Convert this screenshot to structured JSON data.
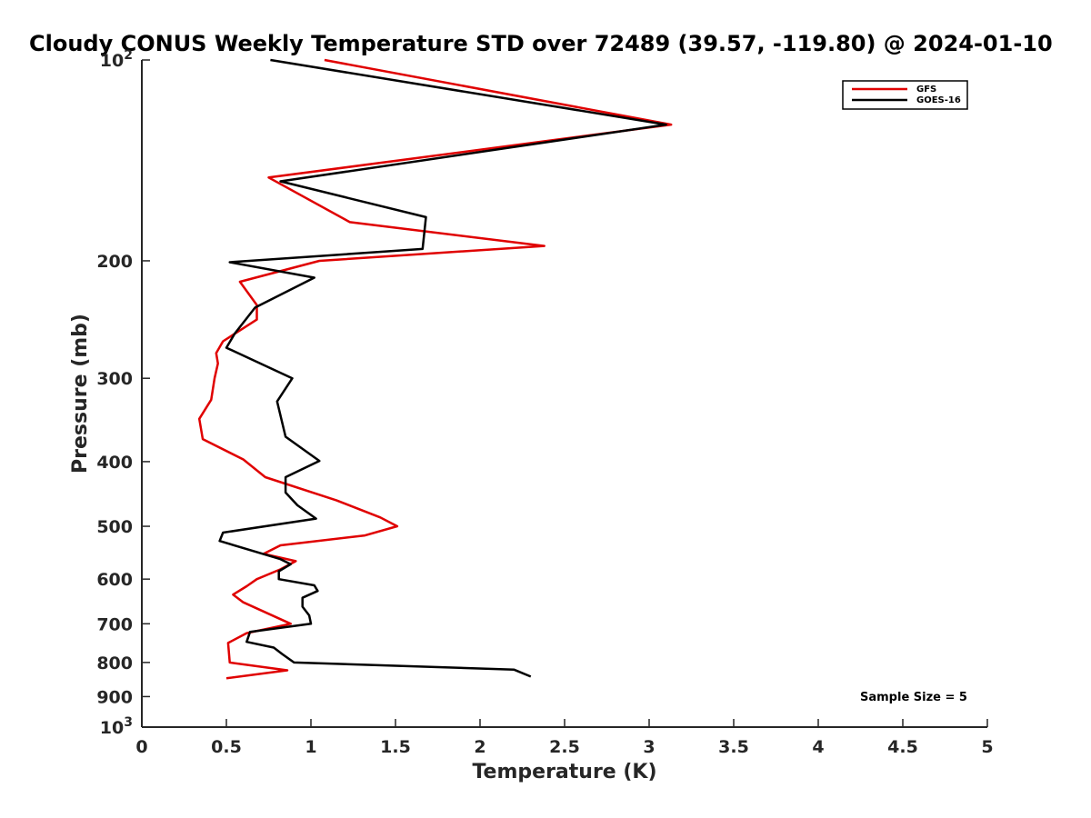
{
  "chart_data": {
    "type": "line",
    "title": "Cloudy CONUS Weekly Temperature STD over 72489 (39.57, -119.80) @ 2024-01-10",
    "xlabel": "Temperature (K)",
    "ylabel": "Pressure (mb)",
    "xlim": [
      0,
      5
    ],
    "ylim": [
      100,
      1000
    ],
    "yscale": "log",
    "y_reversed": true,
    "x_ticks": [
      "0",
      "0.5",
      "1",
      "1.5",
      "2",
      "2.5",
      "3",
      "3.5",
      "4",
      "4.5",
      "5"
    ],
    "y_ticks": [
      {
        "value": 100,
        "base": "10",
        "exp": "2"
      },
      {
        "value": 200,
        "label": "200"
      },
      {
        "value": 300,
        "label": "300"
      },
      {
        "value": 400,
        "label": "400"
      },
      {
        "value": 500,
        "label": "500"
      },
      {
        "value": 600,
        "label": "600"
      },
      {
        "value": 700,
        "label": "700"
      },
      {
        "value": 800,
        "label": "800"
      },
      {
        "value": 900,
        "label": "900"
      },
      {
        "value": 1000,
        "base": "10",
        "exp": "3"
      }
    ],
    "grid": false,
    "legend_position": "top-right",
    "annotation": "Sample Size = 5",
    "series": [
      {
        "name": "GFS",
        "color": "#e00000",
        "points": [
          [
            1.08,
            100
          ],
          [
            3.13,
            125
          ],
          [
            0.75,
            150
          ],
          [
            1.23,
            175
          ],
          [
            2.38,
            190
          ],
          [
            1.05,
            200
          ],
          [
            0.58,
            215
          ],
          [
            0.68,
            233
          ],
          [
            0.68,
            245
          ],
          [
            0.48,
            264
          ],
          [
            0.44,
            275
          ],
          [
            0.45,
            285
          ],
          [
            0.43,
            300
          ],
          [
            0.41,
            323
          ],
          [
            0.34,
            345
          ],
          [
            0.36,
            370
          ],
          [
            0.6,
            397
          ],
          [
            0.73,
            422
          ],
          [
            1.15,
            457
          ],
          [
            1.41,
            485
          ],
          [
            1.51,
            500
          ],
          [
            1.32,
            516
          ],
          [
            0.82,
            534
          ],
          [
            0.72,
            550
          ],
          [
            0.91,
            564
          ],
          [
            0.82,
            580
          ],
          [
            0.68,
            600
          ],
          [
            0.62,
            615
          ],
          [
            0.54,
            633
          ],
          [
            0.6,
            650
          ],
          [
            0.88,
            700
          ],
          [
            0.62,
            723
          ],
          [
            0.51,
            748
          ],
          [
            0.52,
            800
          ],
          [
            0.86,
            822
          ],
          [
            0.5,
            845
          ]
        ]
      },
      {
        "name": "GOES-16",
        "color": "#000000",
        "points": [
          [
            0.76,
            100
          ],
          [
            3.1,
            125
          ],
          [
            0.82,
            152
          ],
          [
            1.68,
            172
          ],
          [
            1.66,
            192
          ],
          [
            0.52,
            201
          ],
          [
            1.02,
            212
          ],
          [
            0.67,
            235
          ],
          [
            0.55,
            257
          ],
          [
            0.5,
            270
          ],
          [
            0.89,
            300
          ],
          [
            0.8,
            325
          ],
          [
            0.85,
            367
          ],
          [
            1.05,
            399
          ],
          [
            0.85,
            422
          ],
          [
            0.85,
            445
          ],
          [
            0.92,
            465
          ],
          [
            1.03,
            487
          ],
          [
            0.48,
            511
          ],
          [
            0.46,
            526
          ],
          [
            0.82,
            560
          ],
          [
            0.88,
            570
          ],
          [
            0.81,
            584
          ],
          [
            0.81,
            600
          ],
          [
            1.02,
            613
          ],
          [
            1.04,
            625
          ],
          [
            0.95,
            640
          ],
          [
            0.95,
            660
          ],
          [
            0.99,
            680
          ],
          [
            1.0,
            700
          ],
          [
            0.64,
            720
          ],
          [
            0.62,
            745
          ],
          [
            0.78,
            760
          ],
          [
            0.83,
            777
          ],
          [
            0.9,
            800
          ],
          [
            2.2,
            820
          ],
          [
            2.3,
            840
          ]
        ]
      }
    ]
  }
}
